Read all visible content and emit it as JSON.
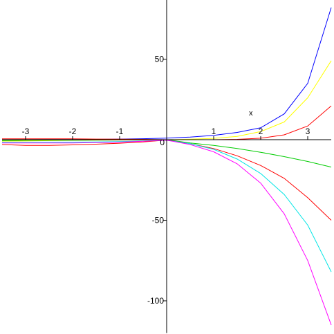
{
  "chart_data": {
    "type": "line",
    "title": "",
    "xlabel": "",
    "ylabel": "",
    "xlim": [
      -3.5,
      3.5
    ],
    "ylim": [
      -120,
      88
    ],
    "grid": false,
    "x_ticks": [
      -3,
      -2,
      -1,
      1,
      2,
      3
    ],
    "x_tick_labels": [
      "-3",
      "-2",
      "-1",
      "1",
      "2",
      "3"
    ],
    "y_ticks": [
      50,
      -50,
      -100
    ],
    "y_tick_labels": [
      "50",
      "-50",
      "-100"
    ],
    "origin_label": "0",
    "annotation": {
      "text": "x",
      "x": 1.75,
      "y": 15
    },
    "series": [
      {
        "color": "#0000ff",
        "x": [
          -3.5,
          -3,
          -2.5,
          -2,
          -1.5,
          -1,
          -0.5,
          0,
          0.5,
          1,
          1.5,
          2,
          2.5,
          3,
          3.5
        ],
        "y": [
          0.03,
          0.05,
          0.08,
          0.14,
          0.22,
          0.37,
          0.61,
          1,
          1.65,
          2.7,
          4.5,
          7.4,
          16,
          35,
          82
        ]
      },
      {
        "color": "#ffff00",
        "x": [
          -3.5,
          -3,
          -2.5,
          -2,
          -1.5,
          -1,
          -0.5,
          0,
          0.5,
          1,
          1.5,
          2,
          2.5,
          3,
          3.5
        ],
        "y": [
          -0.9,
          -0.8,
          -0.6,
          -0.4,
          -0.3,
          -0.2,
          -0.1,
          0,
          0.3,
          0.8,
          2,
          5,
          11,
          26,
          49
        ]
      },
      {
        "color": "#ff0000",
        "x": [
          -3.5,
          -3,
          -2.5,
          -2,
          -1.5,
          -1,
          -0.5,
          0,
          0.5,
          1,
          1.5,
          2,
          2.5,
          3,
          3.5
        ],
        "y": [
          0.5,
          0.5,
          0.5,
          0.5,
          0.4,
          0.3,
          0.2,
          0,
          0,
          0,
          0.2,
          0.9,
          3,
          8.5,
          21
        ]
      },
      {
        "color": "#00cc00",
        "x": [
          -3.5,
          -3,
          -2.5,
          -2,
          -1.5,
          -1,
          -0.5,
          0,
          0.5,
          1,
          1.5,
          2,
          2.5,
          3,
          3.5
        ],
        "y": [
          -0.5,
          -0.4,
          -0.3,
          -0.3,
          -0.2,
          -0.1,
          -0.05,
          0,
          -2,
          -3.5,
          -5.5,
          -7.8,
          -10.5,
          -13.5,
          -17
        ]
      },
      {
        "color": "#ff0000",
        "x": [
          -3.5,
          -3,
          -2.5,
          -2,
          -1.5,
          -1,
          -0.5,
          0,
          0.5,
          1,
          1.5,
          2,
          2.5,
          3,
          3.5
        ],
        "y": [
          -3,
          -3.5,
          -3.5,
          -3.2,
          -2.8,
          -2.2,
          -1.4,
          -0.2,
          -2.5,
          -5.5,
          -10,
          -16,
          -24,
          -36,
          -50
        ]
      },
      {
        "color": "#00e5e5",
        "x": [
          -3.5,
          -3,
          -2.5,
          -2,
          -1.5,
          -1,
          -0.5,
          0,
          0.5,
          1,
          1.5,
          2,
          2.5,
          3,
          3.5
        ],
        "y": [
          -1.5,
          -1.6,
          -1.6,
          -1.5,
          -1.4,
          -1.2,
          -0.8,
          -0.3,
          -2.5,
          -6,
          -12,
          -21,
          -34,
          -53,
          -82
        ]
      },
      {
        "color": "#ff00ff",
        "x": [
          -3.5,
          -3,
          -2.5,
          -2,
          -1.5,
          -1,
          -0.5,
          0,
          0.5,
          1,
          1.5,
          2,
          2.5,
          3,
          3.5
        ],
        "y": [
          -2,
          -2,
          -2,
          -2,
          -1.8,
          -1.5,
          -1,
          -0.3,
          -3,
          -7.5,
          -15,
          -27,
          -46,
          -75,
          -115
        ]
      }
    ]
  }
}
